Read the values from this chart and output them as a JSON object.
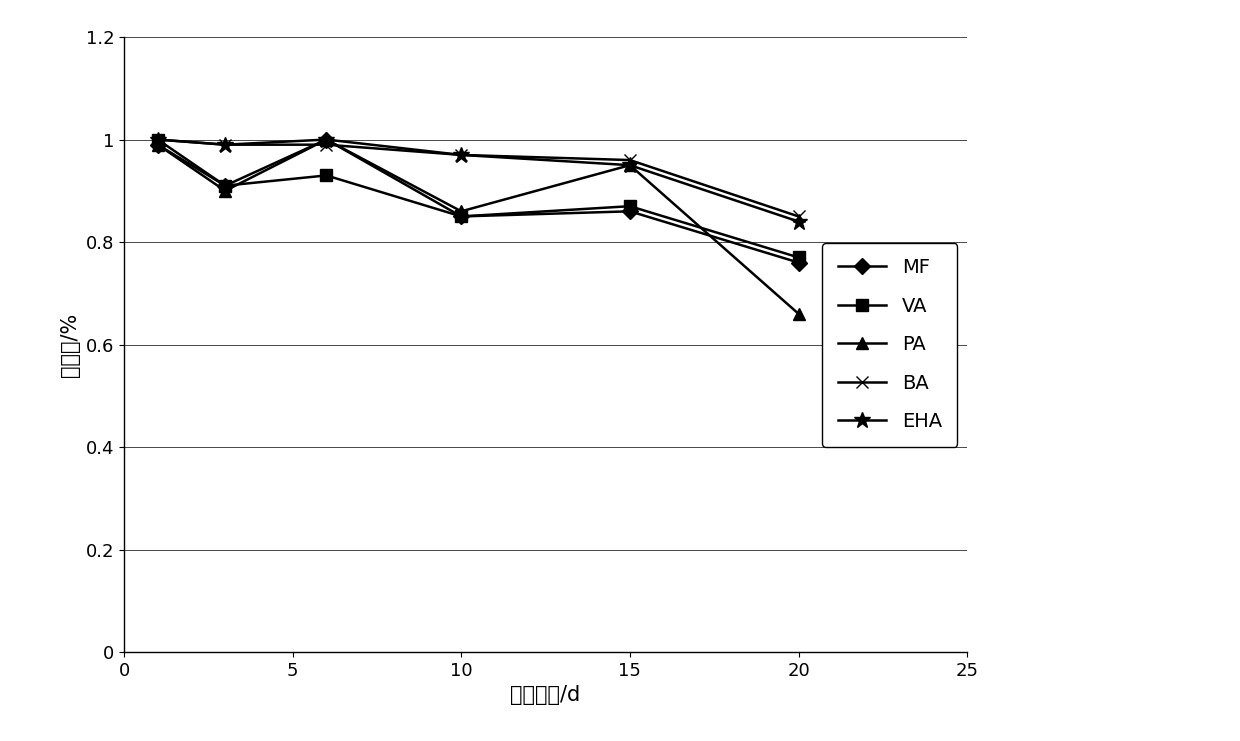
{
  "x": [
    1,
    3,
    6,
    10,
    15,
    20
  ],
  "series": {
    "MF": [
      0.99,
      0.91,
      1.0,
      0.85,
      0.86,
      0.76
    ],
    "VA": [
      1.0,
      0.91,
      0.93,
      0.85,
      0.87,
      0.77
    ],
    "PA": [
      0.99,
      0.9,
      1.0,
      0.86,
      0.95,
      0.66
    ],
    "BA": [
      1.0,
      0.99,
      0.99,
      0.97,
      0.96,
      0.85
    ],
    "EHA": [
      1.0,
      0.99,
      1.0,
      0.97,
      0.95,
      0.84
    ]
  },
  "markers": {
    "MF": "D",
    "VA": "s",
    "PA": "^",
    "BA": "x",
    "EHA": "*"
  },
  "xlabel": "保存时间/d",
  "ylabel": "回收率/%",
  "xlim": [
    0,
    25
  ],
  "ylim": [
    0,
    1.2
  ],
  "xticks": [
    0,
    5,
    10,
    15,
    20,
    25
  ],
  "yticks": [
    0,
    0.2,
    0.4,
    0.6,
    0.8,
    1.0,
    1.2
  ],
  "ytick_labels": [
    "0",
    "0.2",
    "0.4",
    "0.6",
    "0.8",
    "1",
    "1.2"
  ],
  "linewidth": 1.8,
  "markersize": 8,
  "font_size": 14,
  "tick_font_size": 13,
  "label_font_size": 15
}
